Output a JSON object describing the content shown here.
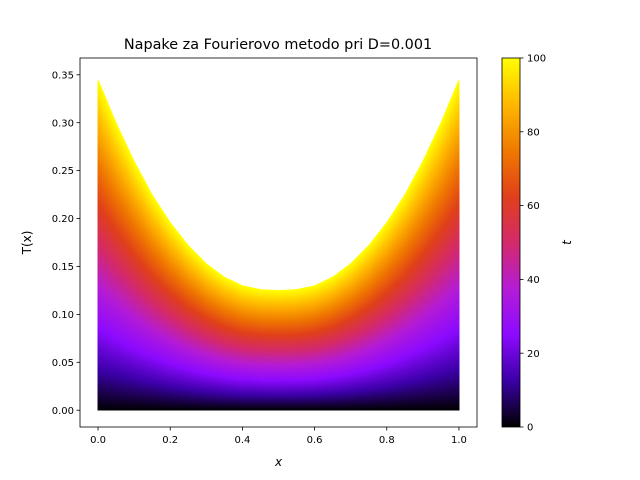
{
  "chart_data": {
    "type": "line",
    "title": "Napake za Fourierovo metodo pri D=0.001",
    "xlabel": "x",
    "ylabel": "T(x)",
    "xlim": [
      -0.05,
      1.05
    ],
    "ylim": [
      -0.0175,
      0.3675
    ],
    "xticks": [
      0.0,
      0.2,
      0.4,
      0.6,
      0.8,
      1.0
    ],
    "xtick_labels": [
      "0.0",
      "0.2",
      "0.4",
      "0.6",
      "0.8",
      "1.0"
    ],
    "yticks": [
      0.0,
      0.05,
      0.1,
      0.15,
      0.2,
      0.25,
      0.3,
      0.35
    ],
    "ytick_labels": [
      "0.00",
      "0.05",
      "0.10",
      "0.15",
      "0.20",
      "0.25",
      "0.30",
      "0.35"
    ],
    "grid": false,
    "legend": "none",
    "series_description": "family of curves T(x,t) for t from 0 to 100, colored by t",
    "t_range": [
      0,
      100
    ],
    "final_curve": {
      "t": 100,
      "x": [
        0.0,
        0.05,
        0.1,
        0.15,
        0.2,
        0.25,
        0.3,
        0.35,
        0.4,
        0.45,
        0.5,
        0.55,
        0.6,
        0.65,
        0.7,
        0.75,
        0.8,
        0.85,
        0.9,
        0.95,
        1.0
      ],
      "y": [
        0.345,
        0.3,
        0.26,
        0.225,
        0.196,
        0.172,
        0.153,
        0.139,
        0.13,
        0.126,
        0.125,
        0.126,
        0.13,
        0.139,
        0.153,
        0.172,
        0.196,
        0.225,
        0.26,
        0.3,
        0.345
      ]
    },
    "colorbar": {
      "label": "t",
      "range": [
        0,
        100
      ],
      "ticks": [
        0,
        20,
        40,
        60,
        80,
        100
      ],
      "tick_labels": [
        "0",
        "20",
        "40",
        "60",
        "80",
        "100"
      ],
      "colormap": [
        "#000000",
        "#3b00a6",
        "#8c0aff",
        "#b41cd6",
        "#d42a6a",
        "#e0401a",
        "#f07a00",
        "#ffb800",
        "#ffff00"
      ]
    }
  }
}
